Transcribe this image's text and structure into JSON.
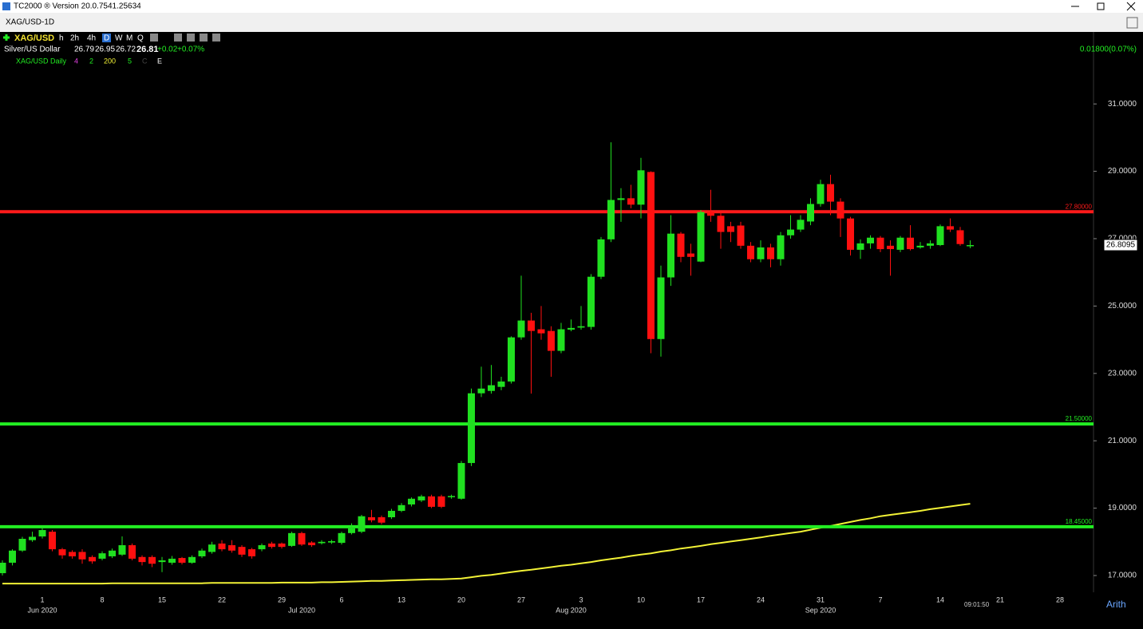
{
  "window": {
    "title": "TC2000 ® Version 20.0.7541.25634"
  },
  "tab": {
    "title": "XAG/USD-1D"
  },
  "toolbar": {
    "symbol": "XAG/USD",
    "timeframes": [
      "h",
      "2h",
      "4h",
      "D",
      "W",
      "M",
      "Q"
    ]
  },
  "quote": {
    "name": "Silver/US Dollar",
    "open": "26.79",
    "high": "26.95",
    "low": "26.72",
    "last": "26.81",
    "change": "+0.02",
    "change_pct": "+0.07%",
    "right_change": "0.01800(0.07%)"
  },
  "indicators": {
    "name": "XAG/USD Daily",
    "params": [
      "4",
      "2",
      "200",
      "5",
      "C",
      "E"
    ]
  },
  "footer": {
    "time": "09:01:50",
    "scale": "Arith"
  },
  "chart_data": {
    "type": "candlestick",
    "categories": [
      null,
      null,
      null,
      null,
      "1",
      null,
      null,
      null,
      null,
      null,
      "8",
      null,
      null,
      null,
      null,
      null,
      "15",
      null,
      null,
      null,
      null,
      null,
      "22",
      null,
      null,
      null,
      null,
      null,
      "29",
      null,
      null,
      null,
      null,
      null,
      "6",
      null,
      null,
      null,
      null,
      null,
      "13",
      null,
      null,
      null,
      null,
      null,
      "20",
      null,
      null,
      null,
      null,
      null,
      "27",
      null,
      null,
      null,
      null,
      null,
      "3",
      null,
      null,
      null,
      null,
      null,
      "10",
      null,
      null,
      null,
      null,
      null,
      "17",
      null,
      null,
      null,
      null,
      null,
      "24",
      null,
      null,
      null,
      null,
      null,
      "31",
      null,
      null,
      null,
      null,
      null,
      "7",
      null,
      null,
      null,
      null,
      null,
      "14",
      null,
      null,
      null,
      null,
      null,
      "21",
      null,
      null,
      null,
      null,
      null,
      "28"
    ],
    "periods": [
      null,
      null,
      null,
      null,
      "Jun 2020",
      null,
      null,
      null,
      null,
      null,
      null,
      null,
      null,
      null,
      null,
      null,
      null,
      null,
      null,
      null,
      null,
      null,
      null,
      null,
      null,
      null,
      null,
      null,
      null,
      null,
      "Jul 2020",
      null,
      null,
      null,
      null,
      null,
      null,
      null,
      null,
      null,
      null,
      null,
      null,
      null,
      null,
      null,
      null,
      null,
      null,
      null,
      null,
      null,
      null,
      null,
      null,
      null,
      null,
      "Aug 2020",
      null,
      null,
      null,
      null,
      null,
      null,
      null,
      null,
      null,
      null,
      null,
      null,
      null,
      null,
      null,
      null,
      null,
      null,
      null,
      null,
      null,
      null,
      null,
      null,
      "Sep 2020",
      null,
      null,
      null,
      null,
      null,
      null,
      null,
      null,
      null,
      null,
      null,
      null,
      null,
      null,
      null,
      null,
      null,
      null,
      null,
      null,
      null,
      null,
      null,
      null
    ],
    "open": [
      17.07,
      17.38,
      17.74,
      18.05,
      18.16,
      18.3,
      17.78,
      17.7,
      17.7,
      17.55,
      17.5,
      17.57,
      17.62,
      17.9,
      17.55,
      17.55,
      17.4,
      17.38,
      17.52,
      17.38,
      17.57,
      17.7,
      17.95,
      17.9,
      17.85,
      17.78,
      17.78,
      17.95,
      17.95,
      17.88,
      18.26,
      17.98,
      17.96,
      17.98,
      17.97,
      18.26,
      18.3,
      18.73,
      18.73,
      18.73,
      18.92,
      19.11,
      19.23,
      19.35,
      19.35,
      19.33,
      19.28,
      20.34,
      22.41,
      22.48,
      22.6,
      22.76,
      24.07,
      24.57,
      24.31,
      24.26,
      23.67,
      24.3,
      24.36,
      24.38,
      25.87,
      26.98,
      28.15,
      28.2,
      28.01,
      28.98,
      24.02,
      25.85,
      27.15,
      26.56,
      26.32,
      27.79,
      27.68,
      27.37,
      27.39,
      26.79,
      26.39,
      26.74,
      26.39,
      27.1,
      27.27,
      27.51,
      28.03,
      28.62,
      28.1,
      27.6,
      26.67,
      26.86,
      27.03,
      26.79,
      26.67,
      27.03,
      26.74,
      26.79,
      26.81,
      27.37,
      27.25,
      26.79,
      null,
      null,
      null,
      null,
      null,
      null,
      null,
      null,
      null
    ],
    "high": [
      17.45,
      17.78,
      18.15,
      18.3,
      18.45,
      18.35,
      17.82,
      17.75,
      17.78,
      17.6,
      17.72,
      17.8,
      18.16,
      17.95,
      17.6,
      17.6,
      17.55,
      17.58,
      17.55,
      17.6,
      17.8,
      18.0,
      18.05,
      18.05,
      17.9,
      17.82,
      17.95,
      18.0,
      17.98,
      18.3,
      18.3,
      18.02,
      18.05,
      18.06,
      18.3,
      18.55,
      18.8,
      18.95,
      18.78,
      18.98,
      19.15,
      19.32,
      19.4,
      19.4,
      19.4,
      19.4,
      20.4,
      22.55,
      23.2,
      23.25,
      22.9,
      24.1,
      25.9,
      24.8,
      25.0,
      24.4,
      24.5,
      24.6,
      25.0,
      25.95,
      27.05,
      29.86,
      28.5,
      28.6,
      29.4,
      29.0,
      26.2,
      27.7,
      27.2,
      26.85,
      27.85,
      28.45,
      27.78,
      27.5,
      27.5,
      26.9,
      26.95,
      26.85,
      27.2,
      27.7,
      27.7,
      28.2,
      28.75,
      28.9,
      28.2,
      27.65,
      26.98,
      27.1,
      27.08,
      26.95,
      27.08,
      27.4,
      26.9,
      26.95,
      27.42,
      27.6,
      27.35,
      26.95,
      null,
      null,
      null,
      null,
      null,
      null,
      null,
      null,
      null
    ],
    "low": [
      17.0,
      17.3,
      17.7,
      18.0,
      18.1,
      17.72,
      17.5,
      17.5,
      17.35,
      17.35,
      17.45,
      17.52,
      17.58,
      17.45,
      17.3,
      17.25,
      17.1,
      17.32,
      17.33,
      17.35,
      17.52,
      17.65,
      17.72,
      17.68,
      17.55,
      17.5,
      17.72,
      17.8,
      17.8,
      17.85,
      17.88,
      17.85,
      17.92,
      17.94,
      17.92,
      18.22,
      18.26,
      18.58,
      18.52,
      18.68,
      18.88,
      19.05,
      19.18,
      19.0,
      19.0,
      19.28,
      19.25,
      20.25,
      22.3,
      22.4,
      22.5,
      22.7,
      24.0,
      22.4,
      24.0,
      22.9,
      23.6,
      24.25,
      24.3,
      24.3,
      25.8,
      26.9,
      27.5,
      27.9,
      27.6,
      23.6,
      23.5,
      25.6,
      26.3,
      25.9,
      26.3,
      27.5,
      26.7,
      26.9,
      26.7,
      26.3,
      26.3,
      26.15,
      26.2,
      27.0,
      27.2,
      27.4,
      27.95,
      27.7,
      27.05,
      26.5,
      26.4,
      26.7,
      26.6,
      25.9,
      26.6,
      26.65,
      26.7,
      26.7,
      26.78,
      27.2,
      26.79,
      26.72,
      null,
      null,
      null,
      null,
      null,
      null,
      null,
      null,
      null
    ],
    "close": [
      17.38,
      17.74,
      18.09,
      18.15,
      18.35,
      17.78,
      17.6,
      17.57,
      17.48,
      17.42,
      17.66,
      17.74,
      17.9,
      17.5,
      17.4,
      17.35,
      17.45,
      17.5,
      17.38,
      17.55,
      17.74,
      17.92,
      17.78,
      17.74,
      17.62,
      17.57,
      17.9,
      17.85,
      17.85,
      18.26,
      17.92,
      17.9,
      18.0,
      18.02,
      18.26,
      18.4,
      18.76,
      18.64,
      18.57,
      18.92,
      19.09,
      19.28,
      19.35,
      19.04,
      19.04,
      19.36,
      20.34,
      22.41,
      22.55,
      22.65,
      22.76,
      24.07,
      24.57,
      24.26,
      24.19,
      23.67,
      24.31,
      24.35,
      24.4,
      25.87,
      26.98,
      28.15,
      28.2,
      28.01,
      29.03,
      24.02,
      25.85,
      27.15,
      26.46,
      26.46,
      27.79,
      27.68,
      27.2,
      27.2,
      26.79,
      26.39,
      26.74,
      26.39,
      27.1,
      27.27,
      27.56,
      28.03,
      28.62,
      28.1,
      27.6,
      26.67,
      26.86,
      27.03,
      26.69,
      26.69,
      27.03,
      26.69,
      26.79,
      26.86,
      27.37,
      27.27,
      26.84,
      26.81,
      null,
      null,
      null,
      null,
      null,
      null,
      null,
      null,
      null
    ],
    "up_color": "#20e020",
    "down_color": "#ff1010",
    "overlay": {
      "color": "#f2f236",
      "values": [
        16.76,
        16.76,
        16.76,
        16.76,
        16.76,
        16.76,
        16.76,
        16.76,
        16.76,
        16.76,
        16.76,
        16.77,
        16.77,
        16.77,
        16.77,
        16.77,
        16.77,
        16.77,
        16.77,
        16.77,
        16.77,
        16.78,
        16.78,
        16.78,
        16.78,
        16.78,
        16.78,
        16.78,
        16.79,
        16.79,
        16.79,
        16.79,
        16.8,
        16.8,
        16.81,
        16.82,
        16.83,
        16.84,
        16.84,
        16.85,
        16.86,
        16.87,
        16.88,
        16.89,
        16.89,
        16.9,
        16.91,
        16.95,
        16.99,
        17.02,
        17.06,
        17.1,
        17.14,
        17.17,
        17.21,
        17.25,
        17.29,
        17.32,
        17.36,
        17.4,
        17.45,
        17.49,
        17.53,
        17.58,
        17.62,
        17.66,
        17.71,
        17.75,
        17.8,
        17.84,
        17.88,
        17.93,
        17.97,
        18.01,
        18.05,
        18.09,
        18.13,
        18.18,
        18.22,
        18.26,
        18.3,
        18.36,
        18.42,
        18.47,
        18.53,
        18.59,
        18.65,
        18.7,
        18.76,
        18.8,
        18.84,
        18.88,
        18.92,
        18.97,
        19.01,
        19.05,
        19.09,
        19.13,
        null,
        null,
        null,
        null,
        null,
        null,
        null,
        null,
        null
      ]
    },
    "levels": [
      {
        "value": 27.8,
        "label": "27.80000",
        "color": "#ff1a1a"
      },
      {
        "value": 21.5,
        "label": "21.50000",
        "color": "#22ee22"
      },
      {
        "value": 18.45,
        "label": "18.45000",
        "color": "#22ee22"
      }
    ],
    "last_price": {
      "value": 26.8095,
      "label": "26.8095"
    },
    "ylim": [
      16.55,
      32.0
    ],
    "yticks": [
      {
        "value": 17,
        "label": "17.0000"
      },
      {
        "value": 19,
        "label": "19.0000"
      },
      {
        "value": 21,
        "label": "21.0000"
      },
      {
        "value": 23,
        "label": "23.0000"
      },
      {
        "value": 25,
        "label": "25.0000"
      },
      {
        "value": 27,
        "label": "27.0000"
      },
      {
        "value": 29,
        "label": "29.0000"
      },
      {
        "value": 31,
        "label": "31.0000"
      }
    ]
  }
}
